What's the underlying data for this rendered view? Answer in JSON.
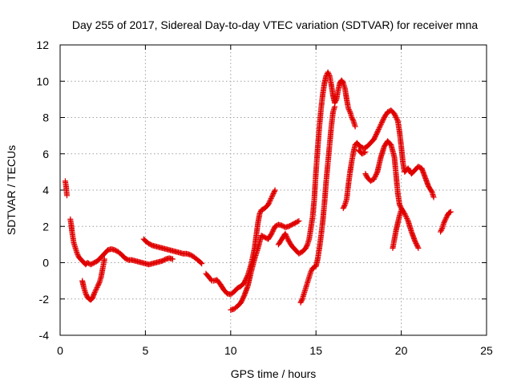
{
  "chart_data": {
    "type": "scatter",
    "title": "Day 255 of 2017, Sidereal Day-to-day VTEC variation (SDTVAR) for receiver mna",
    "xlabel": "GPS time / hours",
    "ylabel": "SDTVAR / TECUs",
    "xlim": [
      0,
      25
    ],
    "ylim": [
      -4,
      12
    ],
    "xticks": [
      0,
      5,
      10,
      15,
      20,
      25
    ],
    "yticks": [
      -4,
      -2,
      0,
      2,
      4,
      6,
      8,
      10,
      12
    ],
    "grid": true,
    "marker": "plus",
    "series": [
      {
        "color": "#e00000",
        "segments": [
          [
            [
              0.3,
              4.5
            ],
            [
              0.35,
              4.2
            ],
            [
              0.4,
              3.7
            ]
          ],
          [
            [
              0.6,
              2.4
            ],
            [
              0.65,
              2.1
            ],
            [
              0.7,
              1.7
            ],
            [
              0.75,
              1.4
            ],
            [
              0.8,
              1.1
            ],
            [
              0.9,
              0.8
            ],
            [
              1.0,
              0.5
            ],
            [
              1.1,
              0.3
            ],
            [
              1.2,
              0.2
            ],
            [
              1.3,
              0.1
            ],
            [
              1.4,
              0.0
            ],
            [
              1.5,
              -0.1
            ],
            [
              1.6,
              0.0
            ],
            [
              1.8,
              -0.1
            ],
            [
              2.0,
              0.0
            ],
            [
              2.2,
              0.1
            ],
            [
              2.4,
              0.3
            ],
            [
              2.6,
              0.5
            ],
            [
              2.8,
              0.7
            ],
            [
              3.0,
              0.75
            ],
            [
              3.2,
              0.7
            ],
            [
              3.4,
              0.6
            ],
            [
              3.6,
              0.45
            ],
            [
              3.8,
              0.25
            ],
            [
              4.0,
              0.15
            ],
            [
              4.2,
              0.15
            ],
            [
              4.4,
              0.1
            ],
            [
              4.6,
              0.05
            ],
            [
              4.8,
              0.0
            ],
            [
              5.0,
              -0.05
            ],
            [
              5.2,
              -0.1
            ],
            [
              5.4,
              -0.05
            ],
            [
              5.6,
              0.0
            ],
            [
              5.8,
              0.05
            ],
            [
              6.0,
              0.1
            ],
            [
              6.2,
              0.2
            ],
            [
              6.4,
              0.25
            ],
            [
              6.6,
              0.2
            ]
          ],
          [
            [
              1.3,
              -1.0
            ],
            [
              1.4,
              -1.4
            ],
            [
              1.5,
              -1.7
            ],
            [
              1.6,
              -1.9
            ],
            [
              1.7,
              -2.0
            ],
            [
              1.8,
              -2.05
            ],
            [
              1.9,
              -1.95
            ],
            [
              2.0,
              -1.7
            ],
            [
              2.1,
              -1.5
            ],
            [
              2.2,
              -1.3
            ],
            [
              2.3,
              -1.1
            ],
            [
              2.4,
              -0.8
            ],
            [
              2.5,
              -0.3
            ],
            [
              2.6,
              0.2
            ]
          ],
          [
            [
              4.9,
              1.3
            ],
            [
              5.0,
              1.2
            ],
            [
              5.2,
              1.05
            ],
            [
              5.4,
              0.95
            ],
            [
              5.6,
              0.9
            ],
            [
              5.8,
              0.85
            ],
            [
              6.0,
              0.8
            ],
            [
              6.2,
              0.75
            ],
            [
              6.4,
              0.7
            ],
            [
              6.6,
              0.65
            ],
            [
              6.8,
              0.6
            ],
            [
              7.0,
              0.55
            ],
            [
              7.2,
              0.5
            ],
            [
              7.4,
              0.5
            ],
            [
              7.6,
              0.45
            ],
            [
              7.8,
              0.35
            ],
            [
              8.0,
              0.2
            ],
            [
              8.2,
              0.05
            ],
            [
              8.3,
              -0.05
            ]
          ],
          [
            [
              8.55,
              -0.6
            ],
            [
              8.9,
              -1.0
            ]
          ],
          [
            [
              9.0,
              -1.0
            ],
            [
              9.2,
              -0.95
            ],
            [
              9.4,
              -1.2
            ],
            [
              9.6,
              -1.5
            ],
            [
              9.8,
              -1.7
            ],
            [
              10.0,
              -1.75
            ],
            [
              10.2,
              -1.6
            ],
            [
              10.4,
              -1.4
            ],
            [
              10.6,
              -1.3
            ],
            [
              10.8,
              -1.1
            ],
            [
              11.0,
              -0.7
            ],
            [
              11.2,
              -0.1
            ],
            [
              11.4,
              0.8
            ],
            [
              11.5,
              1.5
            ],
            [
              11.6,
              2.2
            ],
            [
              11.7,
              2.7
            ],
            [
              11.8,
              2.9
            ],
            [
              12.0,
              3.0
            ],
            [
              12.2,
              3.2
            ],
            [
              12.4,
              3.6
            ],
            [
              12.6,
              4.0
            ]
          ],
          [
            [
              10.0,
              -2.6
            ],
            [
              10.2,
              -2.55
            ],
            [
              10.4,
              -2.4
            ],
            [
              10.6,
              -2.2
            ],
            [
              10.8,
              -1.8
            ],
            [
              11.0,
              -1.3
            ],
            [
              11.2,
              -0.5
            ],
            [
              11.4,
              0.2
            ],
            [
              11.6,
              0.8
            ],
            [
              11.8,
              1.5
            ],
            [
              12.0,
              1.4
            ],
            [
              12.2,
              1.3
            ],
            [
              12.4,
              1.6
            ],
            [
              12.6,
              2.0
            ],
            [
              12.8,
              2.1
            ],
            [
              13.0,
              2.05
            ],
            [
              13.2,
              1.95
            ],
            [
              13.4,
              2.0
            ],
            [
              13.6,
              2.1
            ],
            [
              13.8,
              2.2
            ],
            [
              14.0,
              2.3
            ]
          ],
          [
            [
              12.8,
              1.0
            ],
            [
              13.0,
              1.3
            ],
            [
              13.2,
              1.6
            ],
            [
              13.4,
              1.2
            ],
            [
              13.6,
              0.9
            ],
            [
              13.8,
              0.7
            ],
            [
              14.0,
              0.5
            ],
            [
              14.2,
              0.6
            ],
            [
              14.4,
              0.8
            ],
            [
              14.5,
              1.0
            ],
            [
              14.6,
              1.3
            ],
            [
              14.8,
              2.5
            ],
            [
              14.9,
              3.5
            ],
            [
              15.0,
              5.0
            ],
            [
              15.1,
              6.3
            ],
            [
              15.2,
              7.5
            ],
            [
              15.3,
              8.5
            ],
            [
              15.4,
              9.3
            ],
            [
              15.5,
              9.9
            ],
            [
              15.6,
              10.3
            ],
            [
              15.7,
              10.5
            ],
            [
              15.8,
              10.3
            ],
            [
              15.9,
              9.8
            ],
            [
              16.0,
              9.2
            ],
            [
              16.1,
              8.8
            ],
            [
              16.2,
              9.0
            ],
            [
              16.3,
              9.5
            ],
            [
              16.4,
              9.9
            ],
            [
              16.5,
              10.05
            ],
            [
              16.6,
              9.9
            ],
            [
              16.7,
              9.6
            ],
            [
              16.8,
              9.0
            ],
            [
              16.9,
              8.5
            ],
            [
              17.0,
              8.3
            ],
            [
              17.1,
              8.0
            ],
            [
              17.2,
              7.8
            ],
            [
              17.3,
              7.5
            ]
          ],
          [
            [
              14.1,
              -2.2
            ],
            [
              14.2,
              -2.0
            ],
            [
              14.3,
              -1.7
            ],
            [
              14.4,
              -1.4
            ],
            [
              14.5,
              -1.1
            ],
            [
              14.6,
              -0.8
            ],
            [
              14.7,
              -0.5
            ],
            [
              14.8,
              -0.3
            ],
            [
              15.0,
              -0.2
            ],
            [
              15.1,
              0.2
            ],
            [
              15.2,
              0.8
            ],
            [
              15.3,
              1.5
            ],
            [
              15.4,
              2.3
            ],
            [
              15.5,
              3.3
            ],
            [
              15.6,
              4.5
            ],
            [
              15.7,
              5.5
            ],
            [
              15.8,
              6.5
            ],
            [
              15.9,
              7.5
            ],
            [
              16.0,
              8.3
            ],
            [
              16.1,
              8.6
            ]
          ],
          [
            [
              16.6,
              3.0
            ],
            [
              16.7,
              3.2
            ],
            [
              16.8,
              3.5
            ],
            [
              16.9,
              4.3
            ],
            [
              17.0,
              5.0
            ],
            [
              17.1,
              5.6
            ],
            [
              17.2,
              6.1
            ],
            [
              17.3,
              6.5
            ],
            [
              17.4,
              6.6
            ],
            [
              17.6,
              6.4
            ],
            [
              17.8,
              6.3
            ],
            [
              18.0,
              6.4
            ],
            [
              18.2,
              6.6
            ],
            [
              18.4,
              6.8
            ]
          ],
          [
            [
              17.5,
              6.2
            ],
            [
              17.7,
              6.0
            ],
            [
              17.9,
              6.1
            ]
          ],
          [
            [
              17.9,
              4.9
            ],
            [
              18.0,
              4.7
            ],
            [
              18.2,
              4.5
            ],
            [
              18.4,
              4.6
            ],
            [
              18.6,
              5.0
            ],
            [
              18.8,
              5.8
            ],
            [
              19.0,
              6.4
            ],
            [
              19.2,
              6.7
            ],
            [
              19.4,
              6.5
            ],
            [
              19.6,
              5.8
            ],
            [
              19.7,
              4.8
            ],
            [
              19.8,
              3.8
            ],
            [
              19.9,
              3.2
            ],
            [
              20.0,
              3.0
            ],
            [
              20.2,
              2.7
            ],
            [
              20.4,
              2.3
            ],
            [
              20.6,
              1.7
            ],
            [
              20.8,
              1.2
            ],
            [
              21.0,
              0.8
            ]
          ],
          [
            [
              18.4,
              6.8
            ],
            [
              18.6,
              7.2
            ],
            [
              18.8,
              7.6
            ],
            [
              19.0,
              8.0
            ],
            [
              19.2,
              8.3
            ],
            [
              19.4,
              8.4
            ],
            [
              19.6,
              8.2
            ],
            [
              19.8,
              7.8
            ],
            [
              19.9,
              7.2
            ],
            [
              20.0,
              6.4
            ],
            [
              20.1,
              5.5
            ],
            [
              20.2,
              5.0
            ],
            [
              20.4,
              5.2
            ],
            [
              20.6,
              4.9
            ],
            [
              20.8,
              5.1
            ],
            [
              21.0,
              5.3
            ],
            [
              21.2,
              5.2
            ],
            [
              21.4,
              4.7
            ],
            [
              21.6,
              4.2
            ],
            [
              21.8,
              3.9
            ],
            [
              21.9,
              3.6
            ]
          ],
          [
            [
              19.5,
              0.8
            ],
            [
              19.6,
              1.3
            ],
            [
              19.7,
              1.8
            ],
            [
              19.8,
              2.2
            ],
            [
              19.9,
              2.6
            ],
            [
              20.0,
              2.9
            ]
          ],
          [
            [
              22.3,
              1.7
            ],
            [
              22.4,
              1.9
            ],
            [
              22.5,
              2.2
            ],
            [
              22.6,
              2.4
            ],
            [
              22.7,
              2.6
            ],
            [
              22.8,
              2.75
            ],
            [
              22.9,
              2.8
            ]
          ]
        ]
      }
    ]
  }
}
